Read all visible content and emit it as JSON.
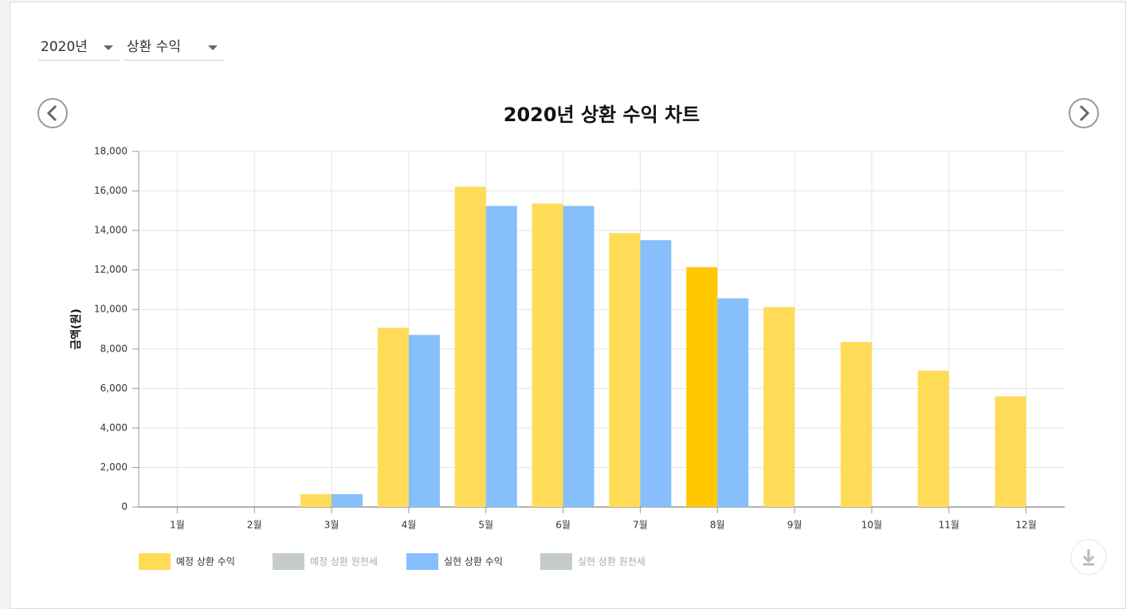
{
  "controls": {
    "year": "2020년",
    "kind": "상환 수익"
  },
  "chart_data": {
    "type": "bar",
    "title": "2020년 상환 수익 차트",
    "y_label": "금액(원)",
    "categories": [
      "1월",
      "2월",
      "3월",
      "4월",
      "5월",
      "6월",
      "7월",
      "8월",
      "9월",
      "10월",
      "11월",
      "12월"
    ],
    "series": [
      {
        "name": "예정 상환 수익",
        "color": "#ffdb57",
        "values": [
          0,
          0,
          650,
          9070,
          16210,
          15360,
          13870,
          12140,
          10120,
          8350,
          6900,
          5600
        ]
      },
      {
        "name": "예정 상환 원천세",
        "color": "#c5cbcb",
        "hidden": true
      },
      {
        "name": "실현 상환 수익",
        "color": "#86bffc",
        "values": [
          0,
          0,
          650,
          8710,
          15240,
          15240,
          13510,
          10560,
          null,
          null,
          null,
          null
        ]
      },
      {
        "name": "실현 상환 원천세",
        "color": "#c5cbcb",
        "hidden": true
      }
    ],
    "highlight_index": 7,
    "highlight_color": "#ffc800",
    "ylim": [
      0,
      18000
    ],
    "yticks": [
      0,
      {
        "value": 2000,
        "label": "2,000"
      },
      {
        "value": 4000,
        "label": "4,000"
      },
      {
        "value": 6000,
        "label": "6,000"
      },
      {
        "value": 8000,
        "label": "8,000"
      },
      {
        "value": 10000,
        "label": "10,000"
      },
      {
        "value": 12000,
        "label": "12,000"
      },
      {
        "value": 14000,
        "label": "14,000"
      },
      {
        "value": 16000,
        "label": "16,000"
      },
      {
        "value": 18000,
        "label": "18,000"
      }
    ],
    "grid": true
  }
}
